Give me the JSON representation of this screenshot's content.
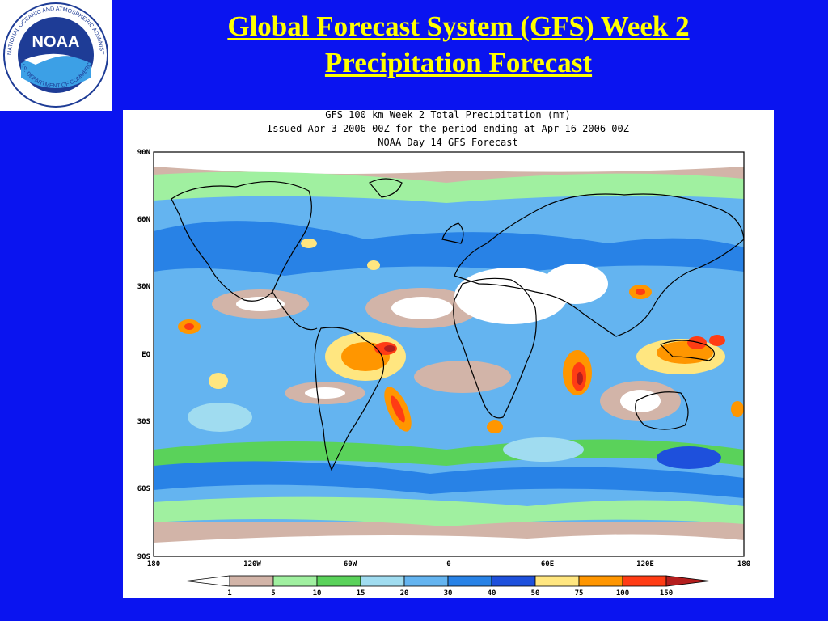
{
  "slide": {
    "title_line1": "Global Forecast System (GFS) Week 2",
    "title_line2": "Precipitation Forecast"
  },
  "logo": {
    "center_text": "NOAA",
    "ring_text": "NATIONAL OCEANIC AND ATMOSPHERIC ADMINISTRATION",
    "bottom_text": "U.S. DEPARTMENT OF COMMERCE"
  },
  "map": {
    "header_line1": "GFS 100 km Week 2 Total Precipitation (mm)",
    "header_line2": "Issued Apr 3 2006 00Z for the period ending at Apr 16 2006 00Z",
    "header_line3": "NOAA Day 14 GFS Forecast",
    "lat_labels": [
      "90N",
      "60N",
      "30N",
      "EQ",
      "30S",
      "60S",
      "90S"
    ],
    "lon_labels": [
      "180",
      "120W",
      "60W",
      "0",
      "60E",
      "120E",
      "180"
    ],
    "units": "mm"
  },
  "colorbar": {
    "labels": [
      "1",
      "5",
      "10",
      "15",
      "20",
      "30",
      "40",
      "50",
      "75",
      "100",
      "150"
    ],
    "colors": [
      "#ffffff",
      "#d2b4a8",
      "#a0f0a0",
      "#5ad25a",
      "#a0dcf0",
      "#64b4f0",
      "#2882e6",
      "#1e50dc",
      "#ffe680",
      "#ff9600",
      "#ff3c14",
      "#b41e1e"
    ]
  },
  "colors": {
    "background": "#0a14f0",
    "title": "#ffff00"
  }
}
